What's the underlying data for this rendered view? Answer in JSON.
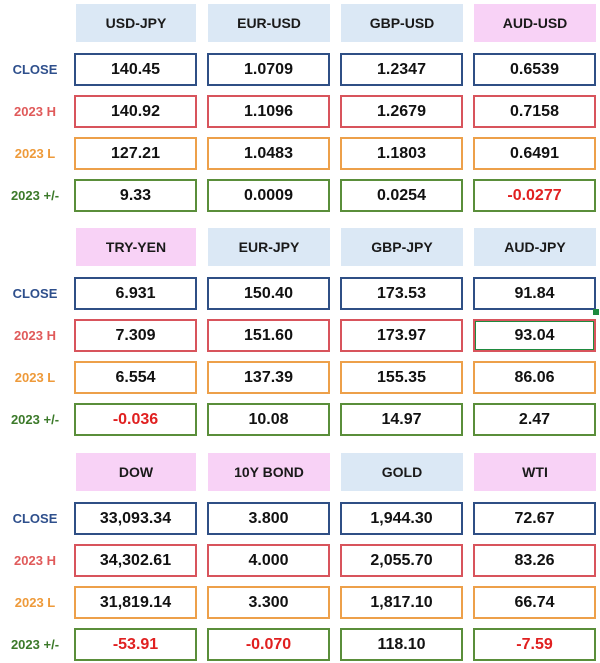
{
  "row_labels": {
    "close": "CLOSE",
    "high": "2023 H",
    "low": "2023 L",
    "change": "2023 +/-"
  },
  "colors": {
    "header_blue": "#dbe8f5",
    "header_pink": "#f8d2f6",
    "close_border": "#2f4f85",
    "high_border": "#d8545c",
    "low_border": "#eda04a",
    "change_border": "#5a8e3a",
    "negative_text": "#e02020"
  },
  "blocks": [
    {
      "columns": [
        {
          "name": "USD-JPY",
          "header_color": "blue",
          "close": "140.45",
          "high": "140.92",
          "low": "127.21",
          "change": "9.33",
          "change_negative": false
        },
        {
          "name": "EUR-USD",
          "header_color": "blue",
          "close": "1.0709",
          "high": "1.1096",
          "low": "1.0483",
          "change": "0.0009",
          "change_negative": false
        },
        {
          "name": "GBP-USD",
          "header_color": "blue",
          "close": "1.2347",
          "high": "1.2679",
          "low": "1.1803",
          "change": "0.0254",
          "change_negative": false
        },
        {
          "name": "AUD-USD",
          "header_color": "pink",
          "close": "0.6539",
          "high": "0.7158",
          "low": "0.6491",
          "change": "-0.0277",
          "change_negative": true
        }
      ]
    },
    {
      "columns": [
        {
          "name": "TRY-YEN",
          "header_color": "pink",
          "close": "6.931",
          "high": "7.309",
          "low": "6.554",
          "change": "-0.036",
          "change_negative": true
        },
        {
          "name": "EUR-JPY",
          "header_color": "blue",
          "close": "150.40",
          "high": "151.60",
          "low": "137.39",
          "change": "10.08",
          "change_negative": false
        },
        {
          "name": "GBP-JPY",
          "header_color": "blue",
          "close": "173.53",
          "high": "173.97",
          "low": "155.35",
          "change": "14.97",
          "change_negative": false
        },
        {
          "name": "AUD-JPY",
          "header_color": "blue",
          "close": "91.84",
          "high": "93.04",
          "low": "86.06",
          "change": "2.47",
          "change_negative": false
        }
      ]
    },
    {
      "columns": [
        {
          "name": "DOW",
          "header_color": "pink",
          "close": "33,093.34",
          "high": "34,302.61",
          "low": "31,819.14",
          "change": "-53.91",
          "change_negative": true
        },
        {
          "name": "10Y BOND",
          "header_color": "pink",
          "close": "3.800",
          "high": "4.000",
          "low": "3.300",
          "change": "-0.070",
          "change_negative": true
        },
        {
          "name": "GOLD",
          "header_color": "blue",
          "close": "1,944.30",
          "high": "2,055.70",
          "low": "1,817.10",
          "change": "118.10",
          "change_negative": false
        },
        {
          "name": "WTI",
          "header_color": "pink",
          "close": "72.67",
          "high": "83.26",
          "low": "66.74",
          "change": "-7.59",
          "change_negative": true
        }
      ]
    }
  ]
}
